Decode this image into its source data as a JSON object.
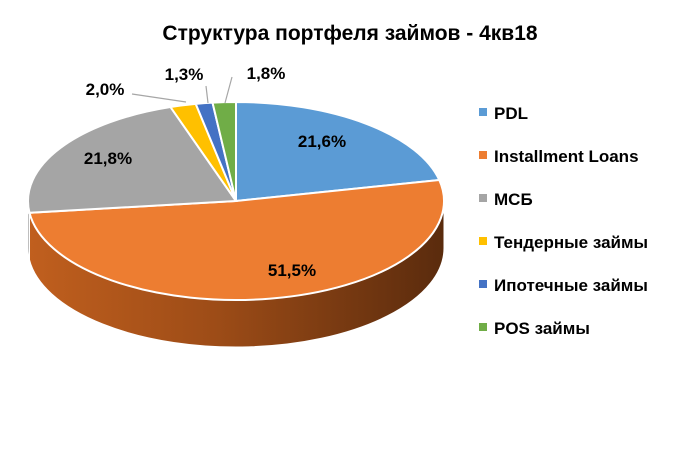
{
  "chart_data": {
    "type": "pie",
    "title": "Структура портфеля займов - 4кв18",
    "legend_position": "right",
    "categories": [
      "PDL",
      "Installment Loans",
      "МСБ",
      "Тендерные займы",
      "Ипотечные займы",
      "POS займы"
    ],
    "values": [
      21.6,
      51.5,
      21.8,
      2.0,
      1.3,
      1.8
    ],
    "labels": [
      "21,6%",
      "51,5%",
      "21,8%",
      "2,0%",
      "1,3%",
      "1,8%"
    ],
    "colors": [
      "#5B9BD5",
      "#ED7D31",
      "#A5A5A5",
      "#FFC000",
      "#4472C4",
      "#70AD47"
    ]
  }
}
